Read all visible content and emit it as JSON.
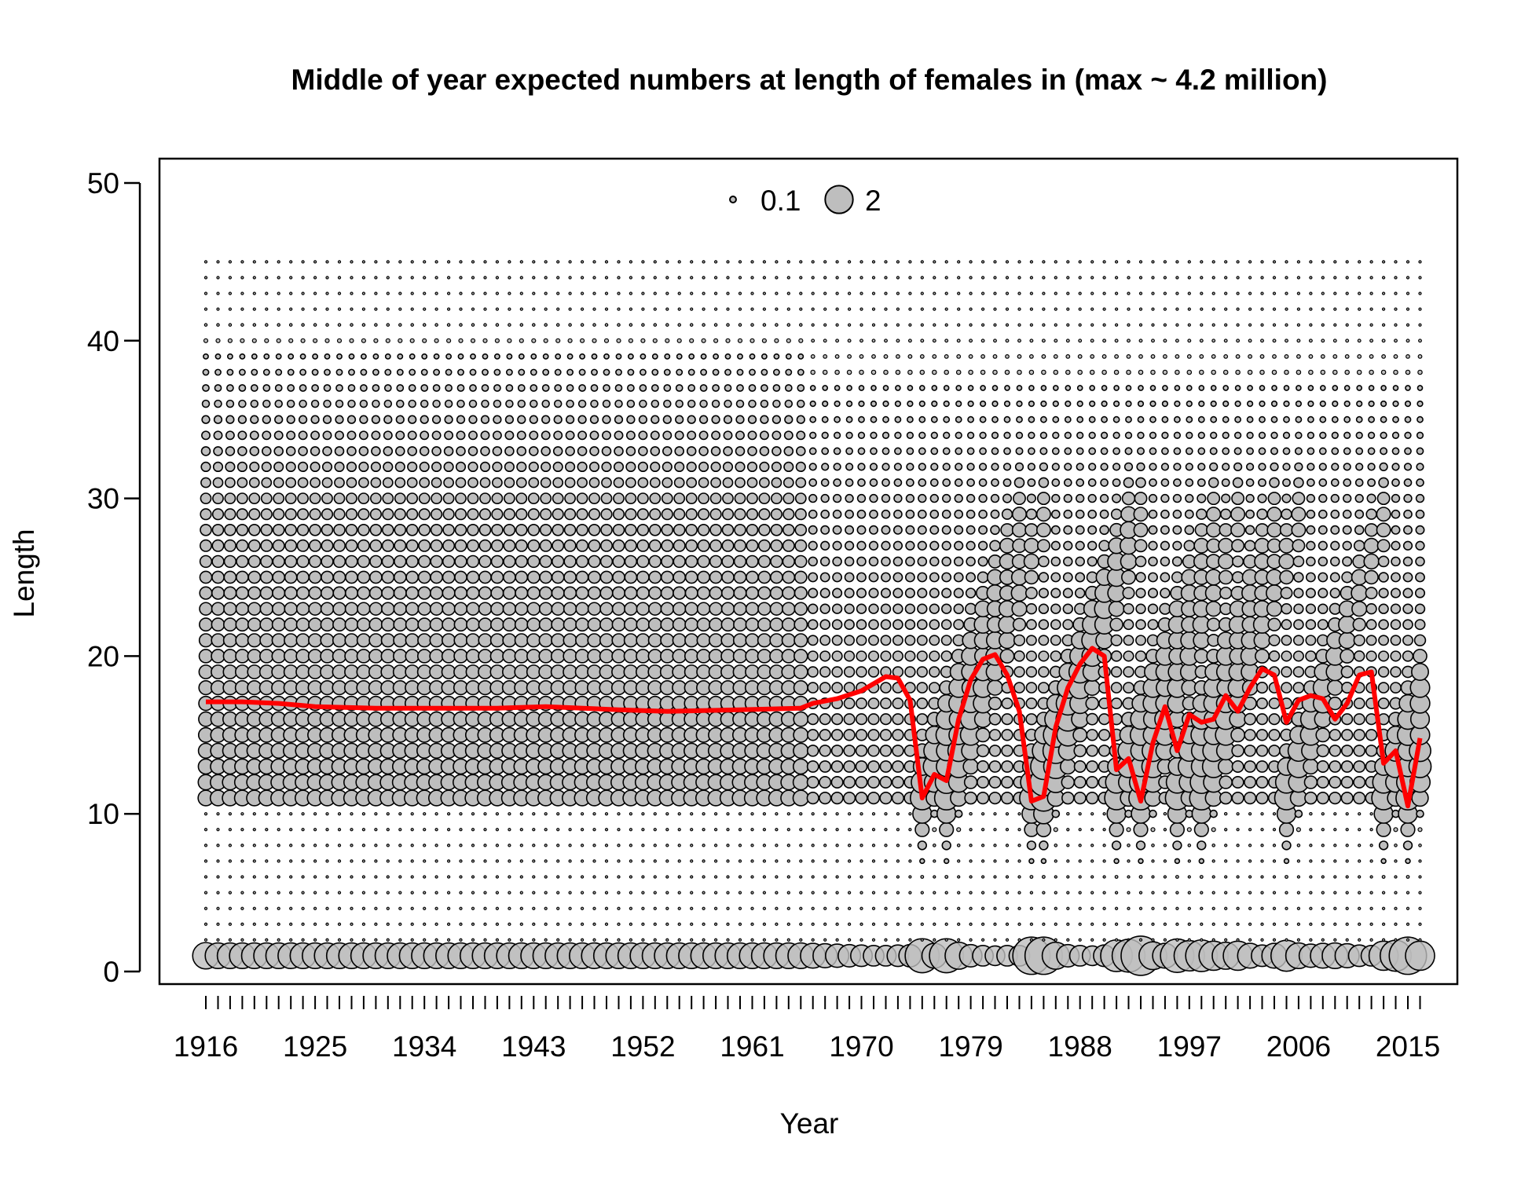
{
  "chart_data": {
    "type": "scatter",
    "subtype": "bubble-with-line",
    "title": "Middle of year expected numbers at length of females in (max ~ 4.2 million)",
    "xlabel": "Year",
    "ylabel": "Length",
    "xlim": [
      1914,
      2018
    ],
    "ylim": [
      0,
      50
    ],
    "x_tick_labels": [
      "1916",
      "1925",
      "1934",
      "1943",
      "1952",
      "1961",
      "1970",
      "1979",
      "1988",
      "1997",
      "2006",
      "2015"
    ],
    "x_tick_values": [
      1916,
      1925,
      1934,
      1943,
      1952,
      1961,
      1970,
      1979,
      1988,
      1997,
      2006,
      2015
    ],
    "x_minor_ticks_every_year": true,
    "y_ticks": [
      0,
      10,
      20,
      30,
      40,
      50
    ],
    "y_tick_labels": [
      "0",
      "10",
      "20",
      "30",
      "40",
      "50"
    ],
    "years": [
      1916,
      2016
    ],
    "length_bins": [
      1,
      45
    ],
    "max_numbers": "4.2 million",
    "legend": {
      "position": "top-center",
      "items": [
        {
          "label": "0.1",
          "value": 0.1
        },
        {
          "label": "2",
          "value": 2
        }
      ]
    },
    "colors": {
      "bubble_fill": "#bebebe",
      "bubble_stroke": "#000000",
      "line": "#ff0000"
    },
    "series": [
      {
        "type": "line",
        "description": "mean length by year",
        "points": [
          [
            1916,
            17.1
          ],
          [
            1919,
            17.1
          ],
          [
            1922,
            17.0
          ],
          [
            1925,
            16.8
          ],
          [
            1930,
            16.7
          ],
          [
            1940,
            16.7
          ],
          [
            1944,
            16.8
          ],
          [
            1950,
            16.6
          ],
          [
            1954,
            16.5
          ],
          [
            1960,
            16.6
          ],
          [
            1965,
            16.7
          ],
          [
            1966,
            17.0
          ],
          [
            1968,
            17.3
          ],
          [
            1970,
            17.8
          ],
          [
            1972,
            18.7
          ],
          [
            1973,
            18.6
          ],
          [
            1974,
            17.2
          ],
          [
            1975,
            11.0
          ],
          [
            1976,
            12.5
          ],
          [
            1977,
            12.1
          ],
          [
            1978,
            16.0
          ],
          [
            1979,
            18.5
          ],
          [
            1980,
            19.8
          ],
          [
            1981,
            20.1
          ],
          [
            1982,
            18.8
          ],
          [
            1983,
            16.5
          ],
          [
            1984,
            10.8
          ],
          [
            1985,
            11.1
          ],
          [
            1986,
            15.5
          ],
          [
            1987,
            18.0
          ],
          [
            1988,
            19.5
          ],
          [
            1989,
            20.5
          ],
          [
            1990,
            20.0
          ],
          [
            1991,
            12.8
          ],
          [
            1992,
            13.5
          ],
          [
            1993,
            10.8
          ],
          [
            1994,
            14.5
          ],
          [
            1995,
            16.8
          ],
          [
            1996,
            14.0
          ],
          [
            1997,
            16.3
          ],
          [
            1998,
            15.8
          ],
          [
            1999,
            16.0
          ],
          [
            2000,
            17.5
          ],
          [
            2001,
            16.5
          ],
          [
            2002,
            18.0
          ],
          [
            2003,
            19.2
          ],
          [
            2004,
            18.8
          ],
          [
            2005,
            15.8
          ],
          [
            2006,
            17.2
          ],
          [
            2007,
            17.5
          ],
          [
            2008,
            17.3
          ],
          [
            2009,
            16.0
          ],
          [
            2010,
            17.0
          ],
          [
            2011,
            18.8
          ],
          [
            2012,
            19.0
          ],
          [
            2013,
            13.2
          ],
          [
            2014,
            14.0
          ],
          [
            2015,
            10.5
          ],
          [
            2016,
            14.8
          ]
        ]
      },
      {
        "type": "bubbles",
        "description": "relative numbers at length 1 (recruits) by year",
        "length": 1,
        "recruit_sizes": {
          "1916": 1.8,
          "1966": 1.6,
          "1967": 1.5,
          "1968": 1.4,
          "1969": 1.3,
          "1970": 1.2,
          "1971": 1.1,
          "1972": 1.1,
          "1973": 1.2,
          "1974": 1.3,
          "1975": 3.0,
          "1976": 1.6,
          "1977": 3.0,
          "1978": 1.9,
          "1979": 1.3,
          "1980": 1.1,
          "1981": 1.0,
          "1982": 1.1,
          "1983": 1.1,
          "1984": 3.6,
          "1985": 3.6,
          "1986": 1.9,
          "1987": 1.3,
          "1988": 1.1,
          "1989": 1.0,
          "1990": 1.2,
          "1991": 2.6,
          "1992": 2.8,
          "1993": 4.0,
          "1994": 2.0,
          "1995": 1.6,
          "1996": 2.9,
          "1997": 2.4,
          "1998": 2.6,
          "1999": 2.2,
          "2000": 1.9,
          "2001": 2.2,
          "2002": 1.6,
          "2003": 1.2,
          "2004": 1.6,
          "2005": 2.5,
          "2006": 1.7,
          "2007": 1.4,
          "2008": 1.6,
          "2009": 1.7,
          "2010": 1.5,
          "2011": 1.2,
          "2012": 1.1,
          "2013": 2.2,
          "2014": 2.5,
          "2015": 3.6,
          "2016": 2.2
        }
      }
    ]
  }
}
